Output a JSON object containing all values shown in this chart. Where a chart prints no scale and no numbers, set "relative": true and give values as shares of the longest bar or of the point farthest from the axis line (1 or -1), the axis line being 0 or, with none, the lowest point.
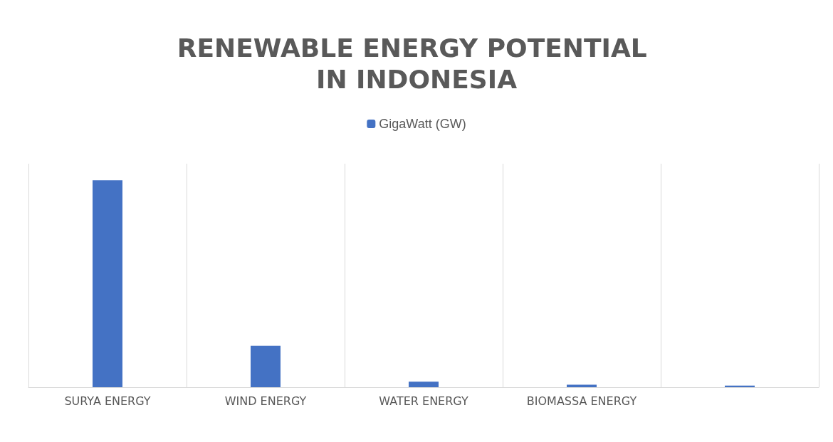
{
  "chart_data": {
    "type": "bar",
    "title": "RENEWABLE ENERGY POTENTIAL IN INDONESIA",
    "categories": [
      "SURYA ENERGY",
      "WIND ENERGY",
      "WATER ENERGY",
      "BIOMASSA ENERGY",
      null
    ],
    "series": [
      {
        "name": "GigaWatt (GW)",
        "color": "#4472c4",
        "values": [
          1,
          0.2,
          0.027,
          0.012,
          0.008
        ]
      }
    ],
    "relative": true,
    "grid": "x",
    "legend": "top"
  }
}
